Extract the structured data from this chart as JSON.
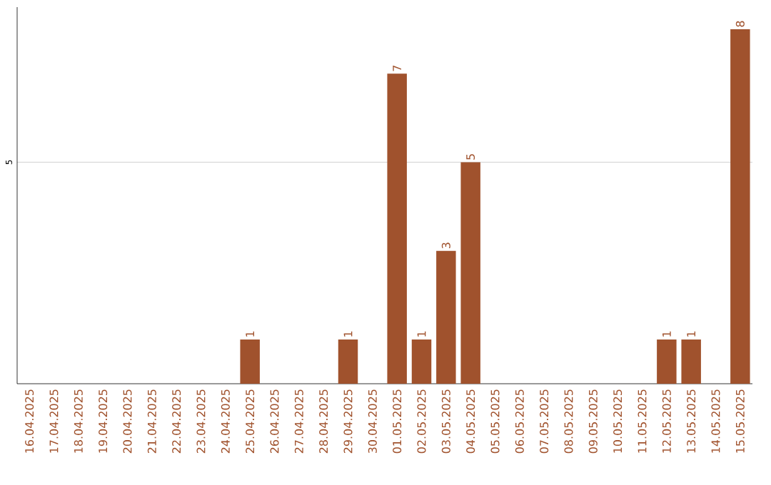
{
  "chart_data": {
    "type": "bar",
    "categories": [
      "16.04.2025",
      "17.04.2025",
      "18.04.2025",
      "19.04.2025",
      "20.04.2025",
      "21.04.2025",
      "22.04.2025",
      "23.04.2025",
      "24.04.2025",
      "25.04.2025",
      "26.04.2025",
      "27.04.2025",
      "28.04.2025",
      "29.04.2025",
      "30.04.2025",
      "01.05.2025",
      "02.05.2025",
      "03.05.2025",
      "04.05.2025",
      "05.05.2025",
      "06.05.2025",
      "07.05.2025",
      "08.05.2025",
      "09.05.2025",
      "10.05.2025",
      "11.05.2025",
      "12.05.2025",
      "13.05.2025",
      "14.05.2025",
      "15.05.2025"
    ],
    "values": [
      0,
      0,
      0,
      0,
      0,
      0,
      0,
      0,
      0,
      1,
      0,
      0,
      0,
      1,
      0,
      7,
      1,
      3,
      5,
      0,
      0,
      0,
      0,
      0,
      0,
      0,
      1,
      1,
      0,
      8
    ],
    "value_labels": [
      null,
      null,
      null,
      null,
      null,
      null,
      null,
      null,
      null,
      "1",
      null,
      null,
      null,
      "1",
      null,
      "7",
      "1",
      "3",
      "5",
      null,
      null,
      null,
      null,
      null,
      null,
      null,
      "1",
      "1",
      null,
      "8"
    ],
    "color": "#a0522d",
    "ylim": [
      0,
      8.5
    ],
    "yticks": [
      5
    ],
    "grid": "y"
  }
}
